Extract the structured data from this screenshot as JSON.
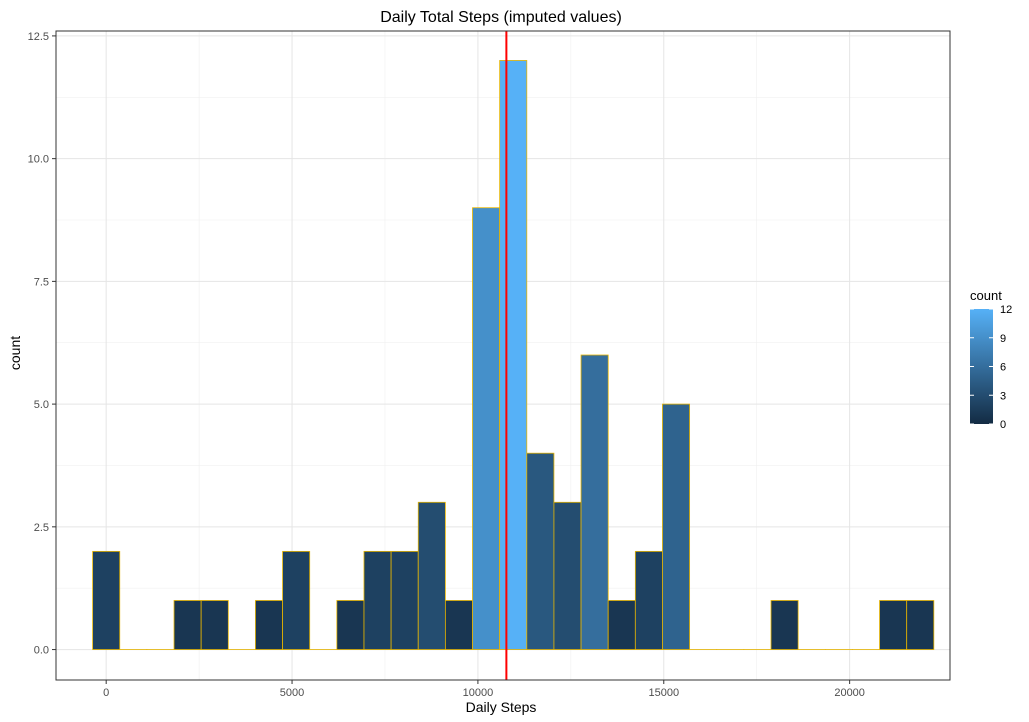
{
  "chart_data": {
    "type": "bar",
    "title": "Daily Total Steps (imputed values)",
    "xlabel": "Daily Steps",
    "ylabel": "count",
    "xlim": [
      -1350,
      22700
    ],
    "ylim": [
      -0.62,
      12.6
    ],
    "x_ticks": [
      0,
      5000,
      10000,
      15000,
      20000
    ],
    "x_tick_labels": [
      "0",
      "5000",
      "10000",
      "15000",
      "20000"
    ],
    "y_ticks": [
      0,
      2.5,
      5,
      7.5,
      10,
      12.5
    ],
    "y_tick_labels": [
      "0.0",
      "2.5",
      "5.0",
      "7.5",
      "10.0",
      "12.5"
    ],
    "bin_width": 730,
    "bins_start": -365,
    "counts": [
      2,
      0,
      0,
      1,
      1,
      0,
      1,
      2,
      0,
      1,
      2,
      2,
      3,
      1,
      9,
      12,
      4,
      3,
      6,
      1,
      2,
      5,
      0,
      0,
      0,
      1,
      0,
      0,
      0,
      1,
      1
    ],
    "mean_line": 10766,
    "mean_line_color": "#ff0000",
    "bar_border_color": "#e6b400",
    "fill_low": "#132b43",
    "fill_high": "#56b1f7",
    "grid": true,
    "legend": {
      "title": "count",
      "position": "right",
      "ticks": [
        0,
        3,
        6,
        9,
        12
      ],
      "tick_labels": [
        "0",
        "3",
        "6",
        "9",
        "12"
      ]
    }
  }
}
